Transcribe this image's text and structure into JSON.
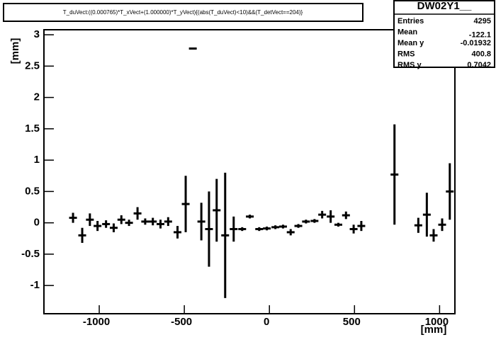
{
  "chart_data": {
    "type": "profile",
    "title": "T_duVect:((0.000765)*T_xVect+(1.000000)*T_yVect){(abs(T_duVect)<10)&&(T_detVect==204)}",
    "x_label": "[mm]",
    "y_label": "[mm]",
    "xlim": [
      -1325,
      1090
    ],
    "ylim": [
      -1.45,
      3.08
    ],
    "xticks": [
      -1000,
      -500,
      0,
      500,
      1000
    ],
    "yticks": [
      -1,
      -0.5,
      0,
      0.5,
      1,
      1.5,
      2,
      2.5,
      3
    ],
    "color": "#000000",
    "x": [
      -1154,
      -1100,
      -1055,
      -1010,
      -960,
      -915,
      -870,
      -825,
      -775,
      -730,
      -685,
      -640,
      -595,
      -540,
      -492,
      -450,
      -400,
      -355,
      -310,
      -260,
      -210,
      -160,
      -115,
      -60,
      -15,
      35,
      80,
      125,
      170,
      215,
      265,
      310,
      360,
      405,
      450,
      495,
      540,
      735,
      875,
      925,
      965,
      1015,
      1060
    ],
    "values": [
      0.08,
      -0.2,
      0.05,
      -0.05,
      -0.02,
      -0.08,
      0.05,
      0.0,
      0.15,
      0.02,
      0.02,
      -0.02,
      0.02,
      -0.15,
      0.3,
      2.78,
      0.02,
      -0.1,
      0.2,
      -0.2,
      -0.1,
      -0.1,
      0.1,
      -0.1,
      -0.09,
      -0.07,
      -0.06,
      -0.15,
      -0.05,
      0.02,
      0.03,
      0.13,
      0.1,
      -0.03,
      0.12,
      -0.1,
      -0.05,
      0.77,
      -0.04,
      0.13,
      -0.2,
      -0.03,
      0.5
    ],
    "errors": [
      0.08,
      0.12,
      0.1,
      0.08,
      0.06,
      0.07,
      0.07,
      0.05,
      0.1,
      0.05,
      0.06,
      0.07,
      0.07,
      0.1,
      0.45,
      0,
      0.3,
      0.6,
      0.5,
      1.0,
      0.2,
      0.03,
      0.03,
      0.03,
      0.03,
      0.03,
      0.03,
      0.05,
      0.03,
      0.03,
      0.03,
      0.06,
      0.1,
      0.03,
      0.06,
      0.07,
      0.08,
      0.8,
      0.12,
      0.35,
      0.1,
      0.1,
      0.45
    ]
  },
  "stats": {
    "name": "DW02Y1__",
    "rows": [
      {
        "label": "Entries",
        "value": 4295
      },
      {
        "label": "Mean",
        "value": -122.1
      },
      {
        "label": "Mean y",
        "value": -0.01932
      },
      {
        "label": "RMS",
        "value": 400.8
      },
      {
        "label": "RMS y",
        "value": 0.7042
      }
    ]
  }
}
